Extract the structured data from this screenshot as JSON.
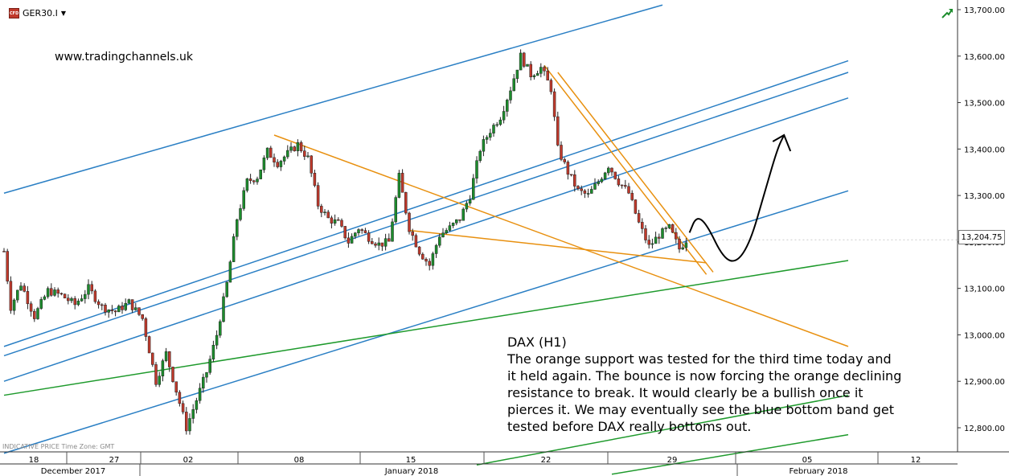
{
  "header": {
    "symbol": "GER30.I",
    "symbol_icon": "cfd-icon",
    "dropdown_icon": "chevron-down-icon",
    "trend_icon": "trend-up-icon"
  },
  "watermark": "www.tradingchannels.uk",
  "footer_note": "INDICATIVE PRICE    Time Zone: GMT",
  "current_price_label": "13,204.75",
  "commentary": {
    "title": "DAX (H1)",
    "lines": [
      "The orange support was tested for the third time today and",
      "it held again. The bounce is now forcing the orange declining",
      "resistance to break. It would clearly be a bullish once it",
      "pierces it. We may eventually see the blue bottom band get",
      "tested before DAX really bottoms out."
    ]
  },
  "colors": {
    "blue_lines": "#2a7fc4",
    "orange_lines": "#e8900f",
    "green_lines": "#1e9a2c",
    "candle_up": "#1c8c2c",
    "candle_down": "#c0392b",
    "projection": "#000000"
  },
  "chart_data": {
    "type": "candlestick",
    "instrument": "GER30.I",
    "timeframe": "H1",
    "y_axis": {
      "ticks": [
        12800,
        12900,
        13000,
        13100,
        13200,
        13300,
        13400,
        13500,
        13600,
        13700
      ],
      "tick_labels": [
        "12,800.00",
        "12,900.00",
        "13,000.00",
        "13,100.00",
        "13,200.00",
        "13,300.00",
        "13,400.00",
        "13,500.00",
        "13,600.00",
        "13,700.00"
      ],
      "ylim": [
        12735,
        13715
      ]
    },
    "x_axis": {
      "day_labels": [
        "18",
        "27",
        "02",
        "08",
        "15",
        "22",
        "29",
        "05",
        "12"
      ],
      "month_labels": [
        "December 2017",
        "January 2018",
        "February 2018"
      ]
    },
    "current_price": 13204.75,
    "price_path": [
      {
        "t": 0,
        "p": 13180
      },
      {
        "t": 2,
        "p": 13060
      },
      {
        "t": 5,
        "p": 13110
      },
      {
        "t": 9,
        "p": 13040
      },
      {
        "t": 13,
        "p": 13095
      },
      {
        "t": 17,
        "p": 13085
      },
      {
        "t": 21,
        "p": 13065
      },
      {
        "t": 25,
        "p": 13100
      },
      {
        "t": 29,
        "p": 13060
      },
      {
        "t": 33,
        "p": 13050
      },
      {
        "t": 37,
        "p": 13070
      },
      {
        "t": 41,
        "p": 13035
      },
      {
        "t": 45,
        "p": 12900
      },
      {
        "t": 48,
        "p": 12960
      },
      {
        "t": 51,
        "p": 12880
      },
      {
        "t": 54,
        "p": 12800
      },
      {
        "t": 57,
        "p": 12860
      },
      {
        "t": 60,
        "p": 12920
      },
      {
        "t": 63,
        "p": 13000
      },
      {
        "t": 66,
        "p": 13110
      },
      {
        "t": 69,
        "p": 13250
      },
      {
        "t": 72,
        "p": 13330
      },
      {
        "t": 75,
        "p": 13340
      },
      {
        "t": 78,
        "p": 13395
      },
      {
        "t": 81,
        "p": 13370
      },
      {
        "t": 84,
        "p": 13390
      },
      {
        "t": 87,
        "p": 13410
      },
      {
        "t": 90,
        "p": 13380
      },
      {
        "t": 93,
        "p": 13280
      },
      {
        "t": 96,
        "p": 13250
      },
      {
        "t": 99,
        "p": 13240
      },
      {
        "t": 102,
        "p": 13200
      },
      {
        "t": 105,
        "p": 13230
      },
      {
        "t": 108,
        "p": 13210
      },
      {
        "t": 111,
        "p": 13195
      },
      {
        "t": 114,
        "p": 13200
      },
      {
        "t": 117,
        "p": 13340
      },
      {
        "t": 120,
        "p": 13230
      },
      {
        "t": 123,
        "p": 13180
      },
      {
        "t": 126,
        "p": 13150
      },
      {
        "t": 129,
        "p": 13215
      },
      {
        "t": 132,
        "p": 13230
      },
      {
        "t": 135,
        "p": 13250
      },
      {
        "t": 138,
        "p": 13300
      },
      {
        "t": 141,
        "p": 13400
      },
      {
        "t": 144,
        "p": 13440
      },
      {
        "t": 147,
        "p": 13470
      },
      {
        "t": 150,
        "p": 13530
      },
      {
        "t": 153,
        "p": 13600
      },
      {
        "t": 156,
        "p": 13560
      },
      {
        "t": 159,
        "p": 13575
      },
      {
        "t": 162,
        "p": 13530
      },
      {
        "t": 164,
        "p": 13400
      },
      {
        "t": 167,
        "p": 13350
      },
      {
        "t": 170,
        "p": 13310
      },
      {
        "t": 173,
        "p": 13300
      },
      {
        "t": 176,
        "p": 13330
      },
      {
        "t": 179,
        "p": 13365
      },
      {
        "t": 182,
        "p": 13330
      },
      {
        "t": 185,
        "p": 13305
      },
      {
        "t": 188,
        "p": 13240
      },
      {
        "t": 191,
        "p": 13190
      },
      {
        "t": 194,
        "p": 13215
      },
      {
        "t": 197,
        "p": 13230
      },
      {
        "t": 200,
        "p": 13185
      },
      {
        "t": 202,
        "p": 13205
      }
    ],
    "overlays": [
      {
        "color": "blue",
        "kind": "trendline",
        "from": {
          "t": 0,
          "p": 13305
        },
        "to": {
          "t": 195,
          "p": 13710
        }
      },
      {
        "color": "blue",
        "kind": "trendline",
        "from": {
          "t": 0,
          "p": 12975
        },
        "to": {
          "t": 250,
          "p": 13590
        }
      },
      {
        "color": "blue",
        "kind": "trendline",
        "from": {
          "t": 0,
          "p": 12955
        },
        "to": {
          "t": 250,
          "p": 13565
        }
      },
      {
        "color": "blue",
        "kind": "trendline",
        "from": {
          "t": 0,
          "p": 12900
        },
        "to": {
          "t": 250,
          "p": 13510
        }
      },
      {
        "color": "blue",
        "kind": "trendline",
        "from": {
          "t": 0,
          "p": 12745
        },
        "to": {
          "t": 250,
          "p": 13310
        }
      },
      {
        "color": "orange",
        "kind": "trendline",
        "from": {
          "t": 80,
          "p": 13430
        },
        "to": {
          "t": 250,
          "p": 12975
        }
      },
      {
        "color": "orange",
        "kind": "trendline",
        "from": {
          "t": 120,
          "p": 13225
        },
        "to": {
          "t": 208,
          "p": 13155
        }
      },
      {
        "color": "orange",
        "kind": "trendline",
        "from": {
          "t": 160,
          "p": 13580
        },
        "to": {
          "t": 208,
          "p": 13130
        }
      },
      {
        "color": "orange",
        "kind": "trendline",
        "from": {
          "t": 164,
          "p": 13565
        },
        "to": {
          "t": 210,
          "p": 13135
        }
      },
      {
        "color": "green",
        "kind": "trendline",
        "from": {
          "t": 0,
          "p": 12870
        },
        "to": {
          "t": 250,
          "p": 13160
        }
      },
      {
        "color": "green",
        "kind": "trendline",
        "from": {
          "t": 140,
          "p": 12720
        },
        "to": {
          "t": 250,
          "p": 12870
        }
      },
      {
        "color": "green",
        "kind": "trendline",
        "from": {
          "t": 180,
          "p": 12700
        },
        "to": {
          "t": 250,
          "p": 12785
        }
      }
    ],
    "projection": [
      {
        "t": 203,
        "p": 13220
      },
      {
        "t": 205,
        "p": 13255
      },
      {
        "t": 208,
        "p": 13240
      },
      {
        "t": 213,
        "p": 13165
      },
      {
        "t": 217,
        "p": 13155
      },
      {
        "t": 221,
        "p": 13200
      },
      {
        "t": 225,
        "p": 13300
      },
      {
        "t": 229,
        "p": 13400
      },
      {
        "t": 231,
        "p": 13430
      }
    ]
  }
}
